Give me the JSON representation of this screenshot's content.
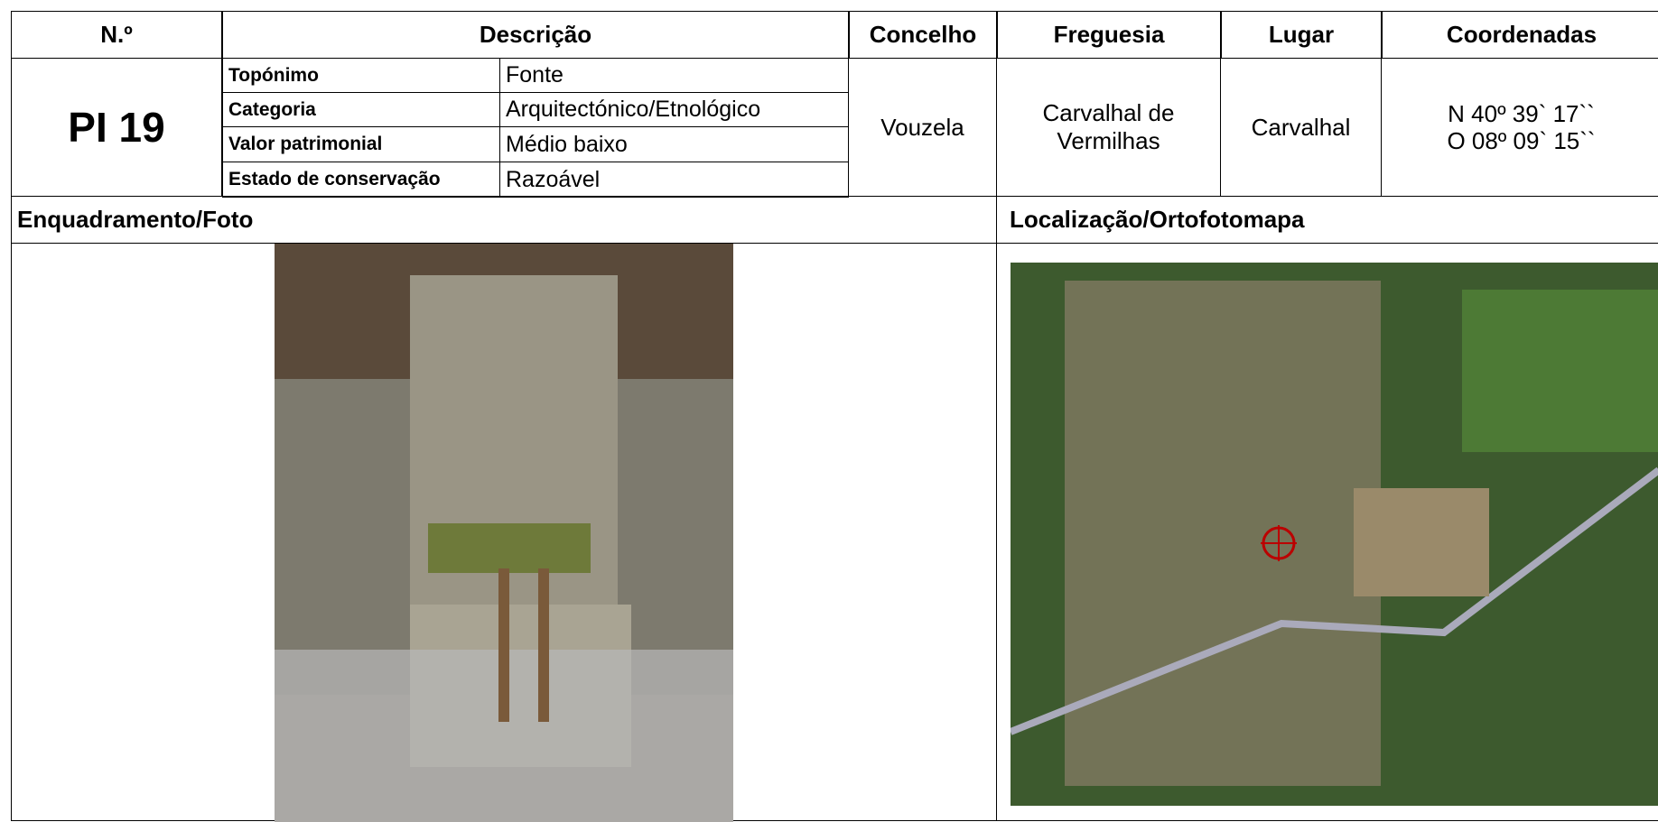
{
  "header": {
    "numero": "N.º",
    "descricao": "Descrição",
    "concelho": "Concelho",
    "freguesia": "Freguesia",
    "lugar": "Lugar",
    "coordenadas": "Coordenadas"
  },
  "record": {
    "numero": "PI 19",
    "descricao": [
      {
        "label": "Topónimo",
        "value": "Fonte"
      },
      {
        "label": "Categoria",
        "value": "Arquitectónico/Etnológico"
      },
      {
        "label": "Valor patrimonial",
        "value": "Médio baixo"
      },
      {
        "label": "Estado de conservação",
        "value": "Razoável"
      }
    ],
    "concelho": "Vouzela",
    "freguesia": "Carvalhal de Vermilhas",
    "lugar": "Carvalhal",
    "coordenadas": [
      "N 40º 39` 17``",
      "O 08º 09` 15``"
    ]
  },
  "sections": {
    "foto": "Enquadramento/Foto",
    "mapa": "Localização/Ortofotomapa"
  }
}
